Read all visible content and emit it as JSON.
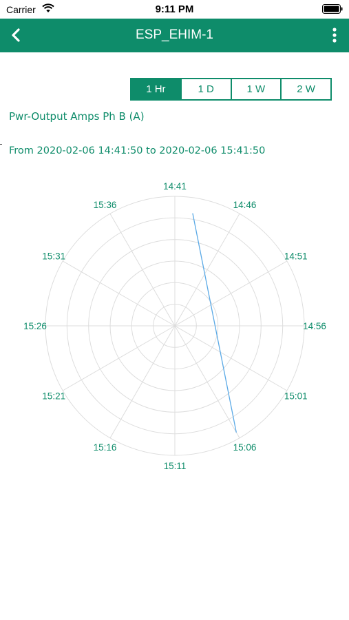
{
  "status_bar": {
    "carrier": "Carrier",
    "time": "9:11 PM"
  },
  "nav": {
    "title": "ESP_EHIM-1",
    "accent_color": "#0e8c6a"
  },
  "range_tabs": [
    {
      "label": "1 Hr",
      "active": true
    },
    {
      "label": "1 D",
      "active": false
    },
    {
      "label": "1 W",
      "active": false
    },
    {
      "label": "2 W",
      "active": false
    }
  ],
  "parameter_label": "Pwr-Output Amps Ph B (A)",
  "date_range_label": "From 2020-02-06 14:41:50 to 2020-02-06 15:41:50",
  "chart_data": {
    "type": "polar-line",
    "angular_labels": [
      "14:41",
      "14:46",
      "14:51",
      "14:56",
      "15:01",
      "15:06",
      "15:11",
      "15:16",
      "15:21",
      "15:26",
      "15:31",
      "15:36"
    ],
    "rings": 6,
    "series": [
      {
        "color": "#5aa9e6",
        "points": [
          {
            "angle_index": 0.3,
            "r": 0.88
          },
          {
            "angle_index": 5.0,
            "r": 0.95
          }
        ]
      }
    ]
  }
}
